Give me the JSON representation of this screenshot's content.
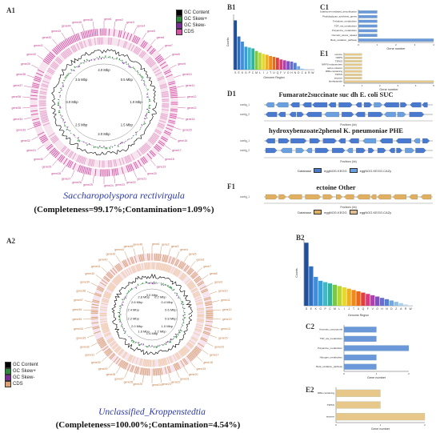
{
  "panels": {
    "a1": "A1",
    "a2": "A2",
    "b1": "B1",
    "b2": "B2",
    "c1": "C1",
    "c2": "C2",
    "d1": "D1",
    "e1": "E1",
    "e2": "E2",
    "f1": "F1"
  },
  "legend": {
    "items": [
      "GC Content",
      "GC Skew+",
      "GC Skew-",
      "CDS"
    ],
    "colors_a1": [
      "#000000",
      "#2a8a3a",
      "#7a2a9a",
      "#d84fa6"
    ],
    "colors_a2": [
      "#000000",
      "#2a8a3a",
      "#7a2a9a",
      "#e0a070"
    ]
  },
  "genome_a1": {
    "organism": "Saccharopolyspora rectivirgula",
    "stats": "(Completeness=99.17%;Contamination=1.09%)",
    "ring_labels": [
      "4.0 Mbp",
      "0.5 Mbp",
      "1.0 Mbp",
      "1.5 Mbp",
      "2.0 Mbp",
      "2.5 Mbp",
      "3.0 Mbp",
      "3.5 Mbp"
    ],
    "ring_colors": {
      "outer": "#d84fa6",
      "inner": "#e6a0cc"
    },
    "annotations": [
      "putative protein",
      "Beta-lactamase",
      "ABC transporter ATP-binding",
      "CAZy/peptidase",
      "Sulfate transporter"
    ]
  },
  "genome_a2": {
    "organism": "Unclassified_Kroppenstedtia",
    "stats": "(Completeness=100.00%;Contamination=4.54%)",
    "ring_labels": [
      "3.0 Mbp",
      "0.2 Mbp",
      "0.4 Mbp",
      "0.6 Mbp",
      "0.8 Mbp",
      "1.0 Mbp",
      "1.2 Mbp",
      "1.4 Mbp",
      "1.6 Mbp",
      "2.0 Mbp",
      "2.2 Mbp",
      "2.4 Mbp",
      "2.6 Mbp",
      "2.8 Mbp"
    ],
    "ring_colors": {
      "outer": "#d8a070",
      "inner": "#f0cca8"
    },
    "annotations": [
      "Putative formate dehydrogenase",
      "Calcium-transporting ATPase 1",
      "Calcium-transporting ATPase 1",
      "CDP-diacylglycerol-glycerol-3-phosphate",
      "Methylmalonyl-CoA carboxyltransferase 12S subunit"
    ]
  },
  "chart_data": [
    {
      "type": "bar",
      "title": "B1",
      "xlabel": "Genome Region",
      "ylabel": "Counts",
      "categories": [
        "S",
        "E",
        "K",
        "G",
        "P",
        "C",
        "M",
        "L",
        "I",
        "J",
        "T",
        "U",
        "Q",
        "F",
        "V",
        "O",
        "H",
        "N",
        "D",
        "Z",
        "A",
        "R",
        "W"
      ],
      "values": [
        580,
        390,
        330,
        270,
        260,
        250,
        220,
        200,
        185,
        175,
        160,
        150,
        140,
        120,
        110,
        100,
        95,
        80,
        40,
        12,
        6,
        4,
        2
      ],
      "ylim": [
        0,
        650
      ],
      "colors": [
        "#1f4e9b",
        "#2f6fc0",
        "#3d8de0",
        "#33a0d8",
        "#3fb8c8",
        "#2fb59a",
        "#7ac943",
        "#b8d830",
        "#e8d82a",
        "#f0b020",
        "#f08a1a",
        "#e86a1a",
        "#e04040",
        "#d83a80",
        "#b040b0",
        "#8050c0",
        "#6a6ad0",
        "#5080d8",
        "#6fa8e0",
        "#90c0e8",
        "#aad0f0",
        "#c0dcf4",
        "#d8e8f8"
      ]
    },
    {
      "type": "bar",
      "title": "B2",
      "xlabel": "Genome Region",
      "ylabel": "Counts",
      "categories": [
        "S",
        "E",
        "K",
        "G",
        "P",
        "C",
        "M",
        "L",
        "I",
        "J",
        "T",
        "U",
        "Q",
        "F",
        "V",
        "O",
        "H",
        "N",
        "D",
        "Z",
        "A",
        "R",
        "W"
      ],
      "values": [
        480,
        300,
        220,
        190,
        180,
        170,
        160,
        150,
        140,
        130,
        120,
        110,
        100,
        90,
        80,
        70,
        60,
        50,
        40,
        30,
        20,
        10,
        5
      ],
      "ylim": [
        0,
        500
      ],
      "colors": [
        "#1f4e9b",
        "#2f6fc0",
        "#3d8de0",
        "#33a0d8",
        "#3fb8c8",
        "#2fb59a",
        "#7ac943",
        "#b8d830",
        "#e8d82a",
        "#f0b020",
        "#f08a1a",
        "#e86a1a",
        "#e04040",
        "#d83a80",
        "#b040b0",
        "#8050c0",
        "#6a6ad0",
        "#5080d8",
        "#6fa8e0",
        "#90c0e8",
        "#aad0f0",
        "#c0dcf4",
        "#d8e8f8"
      ]
    },
    {
      "type": "bar",
      "title": "C1",
      "xlabel": "Gene number",
      "categories": [
        "Glutathione-mediated_detoxification",
        "Peptidoglycan_synthesis_genes",
        "Trehalose_metabolism",
        "TSP_via_metabolism",
        "Polyamine_metabolism",
        "Osmotic_stress_related",
        "Beta_oxidation_pathway"
      ],
      "values": [
        1,
        1,
        1,
        1,
        1,
        1,
        4
      ],
      "color": "#6a98d8"
    },
    {
      "type": "bar",
      "title": "C2",
      "xlabel": "Gene number",
      "categories": [
        "Aromatic_compounds",
        "TSP_via_metabolism",
        "Polyamine_metabolism",
        "Nitrogen_metabolism",
        "Beta_oxidation_pathway"
      ],
      "values": [
        1,
        1,
        2,
        1,
        1
      ],
      "color": "#6a98d8"
    },
    {
      "type": "bar",
      "title": "E1",
      "xlabel": "Gene number",
      "categories": [
        "ectoine",
        "NRPS",
        "T3PKS",
        "NRPS-independent",
        "redox-cofactor",
        "RRE-containing",
        "T2PKS",
        "terpene",
        "lanthipeptide"
      ],
      "values": [
        1,
        1,
        1,
        1,
        1,
        1,
        1,
        1,
        5
      ],
      "color": "#e8c88a"
    },
    {
      "type": "bar",
      "title": "E2",
      "xlabel": "Gene number",
      "categories": [
        "RRE-containing",
        "T3PKS",
        "terpene"
      ],
      "values": [
        1,
        1,
        2
      ],
      "color": "#e8c88a"
    }
  ],
  "gene_d1": {
    "title_1": "Fumarate2succinate suc dh E. coli SUC",
    "title_2": "hydroxybenzoate2phenol K. pneumoniae PHE",
    "axis_label": "Positions (kb)",
    "db_legend_label": "Database",
    "db_items": [
      "eggNOG.KEGG",
      "eggNOG.KEGG.CAZy"
    ],
    "db_colors": [
      "#4a7ad0",
      "#6aa0e0"
    ]
  },
  "gene_f1": {
    "title": "ectoine Other",
    "axis_label": "Positions (kb)",
    "db_legend_label": "Database",
    "db_items": [
      "eggNOG.KEGG",
      "eggNOG.KEGG.CAZy"
    ],
    "db_colors": [
      "#e0b060",
      "#e0c090"
    ]
  }
}
